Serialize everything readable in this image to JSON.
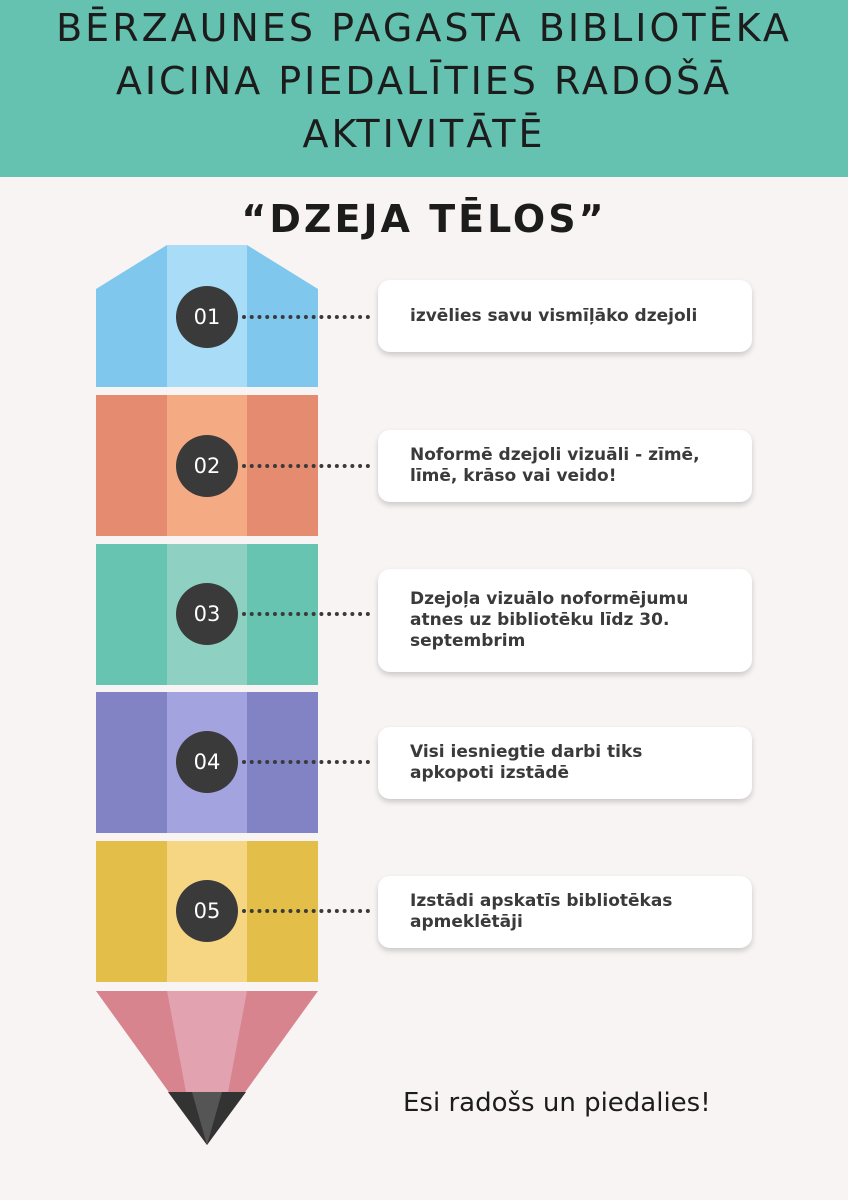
{
  "header": {
    "title_lines": [
      "BĒRZAUNES PAGASTA BIBLIOTĒKA",
      "AICINA PIEDALĪTIES RADOŠĀ",
      "AKTIVITĀTĒ"
    ]
  },
  "subtitle": "“DZEJA TĒLOS”",
  "steps": [
    {
      "number": "01",
      "text": "izvēlies savu vismīļāko dzejoli"
    },
    {
      "number": "02",
      "text": "Noformē dzejoli vizuāli - zīmē, līmē, krāso vai veido!"
    },
    {
      "number": "03",
      "text": "Dzejoļa vizuālo noformējumu atnes uz bibliotēku līdz 30. septembrim"
    },
    {
      "number": "04",
      "text": "Visi iesniegtie darbi tiks apkopoti izstādē"
    },
    {
      "number": "05",
      "text": "Izstādi apskatīs bibliotēkas apmeklētāji"
    }
  ],
  "footer": "Esi radošs un piedalies!",
  "colors": {
    "header_bg": "#66c2b0",
    "page_bg": "#f8f4f3",
    "blue": "#80c7ee",
    "orange": "#e58b70",
    "teal": "#66c4b1",
    "purple": "#8283c4",
    "yellow": "#e3bf4a",
    "pink": "#d7848e",
    "circle": "#3a3a3a"
  }
}
